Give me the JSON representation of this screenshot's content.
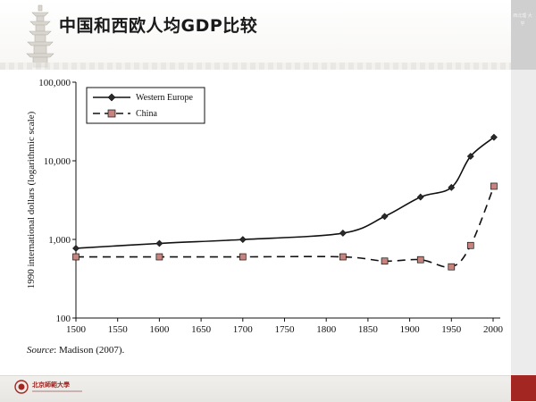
{
  "slide": {
    "title": "中国和西欧人均GDP比较",
    "side_text": "西北理 大学",
    "source_label": "Source",
    "source_text": ": Madison (2007).",
    "school_name": "北京師範大學",
    "colors": {
      "accent_red": "#a32622",
      "band_grey": "#cfcfcf"
    }
  },
  "chart_data": {
    "type": "line",
    "ylabel": "1990 international dollars (logarithmic scale)",
    "xlabel": "",
    "y_scale": "log",
    "ylim": [
      100,
      100000
    ],
    "xlim": [
      1500,
      2000
    ],
    "x_ticks": [
      1500,
      1550,
      1600,
      1650,
      1700,
      1750,
      1800,
      1850,
      1900,
      1950,
      2000
    ],
    "y_ticks": [
      100,
      1000,
      10000,
      100000
    ],
    "y_tick_labels": [
      "100",
      "1,000",
      "10,000",
      "100,000"
    ],
    "grid": false,
    "legend_position": "top-left",
    "series": [
      {
        "name": "Western Europe",
        "marker": "diamond",
        "line_style": "solid",
        "color": "#111111",
        "x": [
          1500,
          1600,
          1700,
          1820,
          1870,
          1913,
          1950,
          1973,
          2001
        ],
        "values": [
          771,
          889,
          997,
          1202,
          1960,
          3458,
          4578,
          11416,
          19912
        ]
      },
      {
        "name": "China",
        "marker": "square",
        "line_style": "dashed",
        "color": "#111111",
        "marker_fill": "#c7837e",
        "x": [
          1500,
          1600,
          1700,
          1820,
          1870,
          1913,
          1950,
          1973,
          2001
        ],
        "values": [
          600,
          600,
          600,
          600,
          530,
          552,
          448,
          838,
          4750
        ]
      }
    ]
  }
}
